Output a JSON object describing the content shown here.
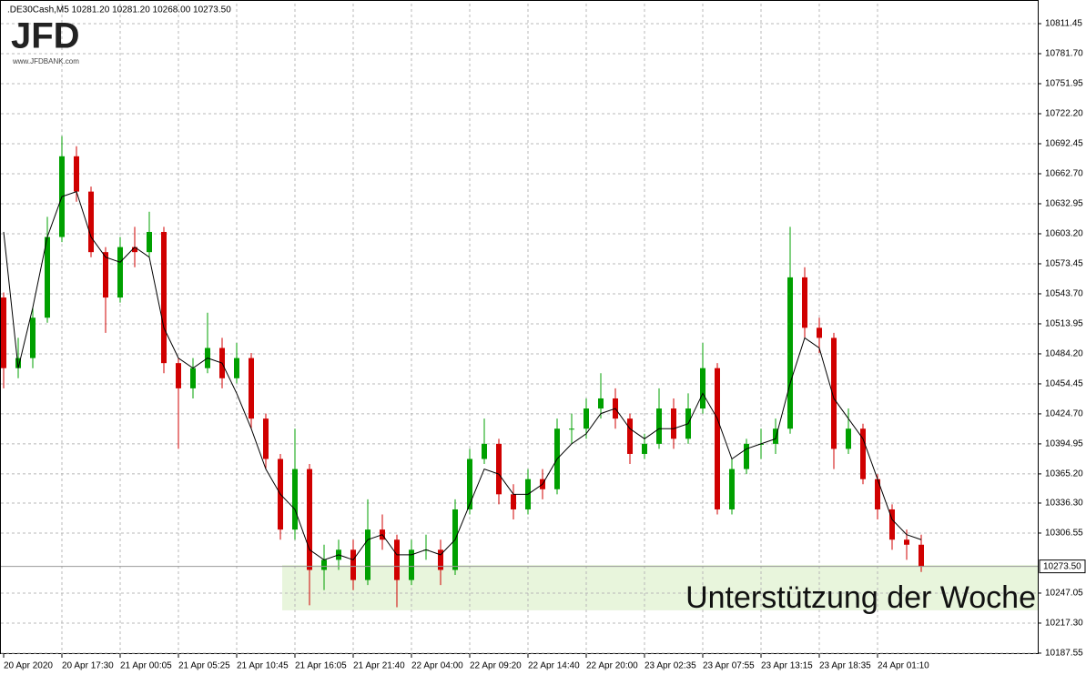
{
  "chart_data": {
    "type": "candlestick",
    "header": ".DE30Cash,M5  10281.20 10281.20 10268.00 10273.50",
    "logo": "JFD",
    "logo_url": "www.JFDBANK.com",
    "annotation": "Unterstützung der Woche",
    "zone": {
      "from": 10230,
      "to": 10275,
      "color": "#e8f5dc"
    },
    "last_price": 10273.5,
    "last_price_label": "10273.50",
    "up_color": "#00a000",
    "down_color": "#d00000",
    "grid": true,
    "ylim": [
      10186.6,
      10831.3
    ],
    "yticks": [
      {
        "value": 10187.55,
        "label": "10187.55"
      },
      {
        "value": 10217.3,
        "label": "10217.30"
      },
      {
        "value": 10247.05,
        "label": "10247.05"
      },
      {
        "value": 10306.55,
        "label": "10306.55"
      },
      {
        "value": 10336.3,
        "label": "10336.30"
      },
      {
        "value": 10365.2,
        "label": "10365.20"
      },
      {
        "value": 10394.95,
        "label": "10394.95"
      },
      {
        "value": 10424.7,
        "label": "10424.70"
      },
      {
        "value": 10454.45,
        "label": "10454.45"
      },
      {
        "value": 10484.2,
        "label": "10484.20"
      },
      {
        "value": 10513.95,
        "label": "10513.95"
      },
      {
        "value": 10543.7,
        "label": "10543.70"
      },
      {
        "value": 10573.45,
        "label": "10573.45"
      },
      {
        "value": 10603.2,
        "label": "10603.20"
      },
      {
        "value": 10632.95,
        "label": "10632.95"
      },
      {
        "value": 10662.7,
        "label": "10662.70"
      },
      {
        "value": 10692.45,
        "label": "10692.45"
      },
      {
        "value": 10722.2,
        "label": "10722.20"
      },
      {
        "value": 10751.95,
        "label": "10751.95"
      },
      {
        "value": 10781.7,
        "label": "10781.70"
      },
      {
        "value": 10811.45,
        "label": "10811.45"
      }
    ],
    "categories": [
      "20 Apr 2020",
      null,
      null,
      null,
      "20 Apr 17:30",
      null,
      null,
      null,
      "21 Apr 00:05",
      null,
      null,
      null,
      "21 Apr 05:25",
      null,
      null,
      null,
      "21 Apr 10:45",
      null,
      null,
      null,
      "21 Apr 16:05",
      null,
      null,
      null,
      "21 Apr 21:40",
      null,
      null,
      null,
      "22 Apr 04:00",
      null,
      null,
      null,
      "22 Apr 09:20",
      null,
      null,
      null,
      "22 Apr 14:40",
      null,
      null,
      null,
      "22 Apr 20:00",
      null,
      null,
      null,
      "23 Apr 02:35",
      null,
      null,
      null,
      "23 Apr 07:55",
      null,
      null,
      null,
      "23 Apr 13:15",
      null,
      null,
      null,
      "23 Apr 18:35",
      null,
      null,
      null,
      "24 Apr 01:10",
      null,
      null,
      null
    ],
    "open": [
      10540,
      10470,
      10480,
      10520,
      10600,
      10680,
      10645,
      10585,
      10540,
      10590,
      10585,
      10605,
      10475,
      10450,
      10470,
      10490,
      10460,
      10480,
      10420,
      10380,
      10310,
      10370,
      10270,
      10280,
      10290,
      10260,
      10310,
      10300,
      10260,
      10290,
      10290,
      10270,
      10330,
      10380,
      10395,
      10345,
      10330,
      10360,
      10350,
      10410,
      10410,
      10430,
      10440,
      10420,
      10385,
      10395,
      10430,
      10400,
      10430,
      10470,
      10330,
      10370,
      10395,
      10395,
      10410,
      10560,
      10510,
      10500,
      10390,
      10410,
      10360,
      10330,
      10300,
      10295
    ],
    "high": [
      10545,
      10500,
      10530,
      10620,
      10700,
      10690,
      10650,
      10590,
      10600,
      10610,
      10625,
      10610,
      10480,
      10480,
      10525,
      10500,
      10495,
      10485,
      10425,
      10385,
      10410,
      10375,
      10295,
      10300,
      10300,
      10340,
      10325,
      10305,
      10300,
      10305,
      10300,
      10340,
      10390,
      10420,
      10400,
      10355,
      10370,
      10370,
      10420,
      10425,
      10440,
      10465,
      10450,
      10425,
      10405,
      10450,
      10440,
      10445,
      10495,
      10475,
      10380,
      10400,
      10410,
      10420,
      10610,
      10570,
      10520,
      10505,
      10430,
      10415,
      10365,
      10335,
      10310,
      10305
    ],
    "low": [
      10450,
      10460,
      10470,
      10515,
      10595,
      10635,
      10580,
      10505,
      10535,
      10570,
      10580,
      10465,
      10390,
      10440,
      10465,
      10450,
      10455,
      10410,
      10370,
      10300,
      10300,
      10235,
      10250,
      10270,
      10250,
      10255,
      10290,
      10233,
      10255,
      10280,
      10255,
      10265,
      10325,
      10375,
      10335,
      10320,
      10325,
      10340,
      10345,
      10395,
      10400,
      10420,
      10410,
      10375,
      10380,
      10390,
      10390,
      10395,
      10425,
      10325,
      10325,
      10365,
      10380,
      10385,
      10405,
      10500,
      10485,
      10370,
      10385,
      10355,
      10320,
      10290,
      10280,
      10268
    ],
    "close": [
      10470,
      10480,
      10520,
      10600,
      10680,
      10645,
      10585,
      10540,
      10590,
      10585,
      10605,
      10475,
      10450,
      10470,
      10490,
      10460,
      10480,
      10420,
      10380,
      10310,
      10370,
      10270,
      10280,
      10290,
      10260,
      10310,
      10300,
      10260,
      10290,
      10290,
      10270,
      10330,
      10380,
      10395,
      10345,
      10330,
      10360,
      10350,
      10410,
      10410,
      10430,
      10440,
      10420,
      10385,
      10395,
      10430,
      10400,
      10430,
      10470,
      10330,
      10370,
      10395,
      10395,
      10410,
      10560,
      10510,
      10500,
      10390,
      10410,
      10360,
      10330,
      10300,
      10295,
      10273.5
    ],
    "ma": {
      "color": "#000000",
      "values": [
        10605,
        10470,
        10530,
        10600,
        10640,
        10645,
        10600,
        10580,
        10575,
        10590,
        10580,
        10510,
        10480,
        10470,
        10480,
        10475,
        10445,
        10410,
        10370,
        10345,
        10330,
        10290,
        10280,
        10285,
        10280,
        10300,
        10305,
        10285,
        10285,
        10290,
        10285,
        10300,
        10335,
        10370,
        10365,
        10345,
        10345,
        10355,
        10380,
        10395,
        10405,
        10425,
        10430,
        10410,
        10400,
        10410,
        10410,
        10415,
        10445,
        10420,
        10380,
        10390,
        10395,
        10400,
        10455,
        10500,
        10490,
        10440,
        10420,
        10400,
        10360,
        10320,
        10305,
        10300
      ]
    }
  }
}
